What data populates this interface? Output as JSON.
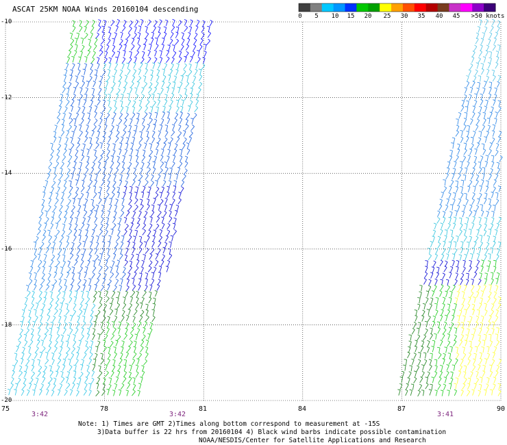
{
  "title": "ASCAT 25KM NOAA Winds 20160104 descending",
  "legend": {
    "colors": [
      "#404040",
      "#808080",
      "#00c8ff",
      "#0096ff",
      "#0032ff",
      "#00c800",
      "#00a000",
      "#ffff00",
      "#ffa000",
      "#ff5000",
      "#ff0000",
      "#b40000",
      "#783c1e",
      "#c832c8",
      "#ff00ff",
      "#8c00c8",
      "#3c0078"
    ],
    "labels": [
      "0",
      "5",
      "10",
      "15",
      "20",
      "25",
      "30",
      "35",
      "40",
      "45",
      ">50 knots"
    ]
  },
  "axes": {
    "y_labels": [
      "-10",
      "-12",
      "-14",
      "-16",
      "-18",
      "-20"
    ],
    "x_labels": [
      "75",
      "78",
      "81",
      "84",
      "87",
      "90"
    ],
    "lat_range": [
      -20,
      -10
    ],
    "lon_range": [
      75,
      90
    ],
    "grid": "dotted"
  },
  "times": [
    "3:42",
    "3:42",
    "3:41"
  ],
  "notes": {
    "line1": "Note: 1) Times are GMT 2)Times along bottom correspond to measurement at -15S",
    "line2": "3)Data buffer is 22 hrs from 20160104 4) Black wind barbs indicate possible contamination",
    "line3": "NOAA/NESDIS/Center for Satellite Applications and Research"
  }
}
